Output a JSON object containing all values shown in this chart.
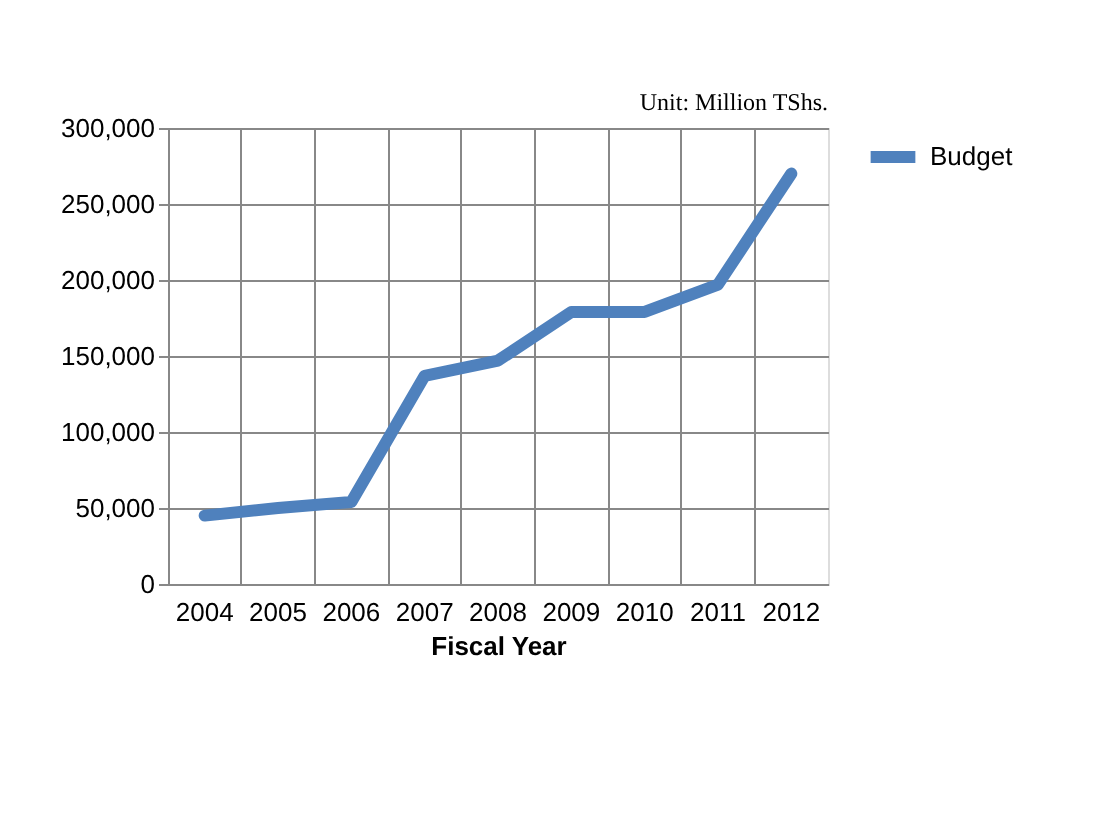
{
  "chart_data": {
    "type": "line",
    "xlabel": "Fiscal Year",
    "categories": [
      "2004",
      "2005",
      "2006",
      "2007",
      "2008",
      "2009",
      "2010",
      "2011",
      "2012"
    ],
    "series": [
      {
        "name": "Budget",
        "color": "#4f81bd",
        "values": [
          45000,
          50000,
          54000,
          137000,
          147000,
          179000,
          179000,
          197000,
          270000
        ]
      }
    ],
    "ylim": [
      0,
      300000
    ],
    "yticks": [
      0,
      {
        "value": 50000,
        "label": "50,000"
      },
      {
        "value": 100000,
        "label": "100,000"
      },
      {
        "value": 150000,
        "label": "150,000"
      },
      {
        "value": 200000,
        "label": "200,000"
      },
      {
        "value": 250000,
        "label": "250,000"
      },
      {
        "value": 300000,
        "label": "300,000"
      }
    ],
    "grid": true,
    "legend": "right",
    "marker": "none",
    "line_style": "solid",
    "annotations": [
      "Unit: Million TShs."
    ]
  }
}
